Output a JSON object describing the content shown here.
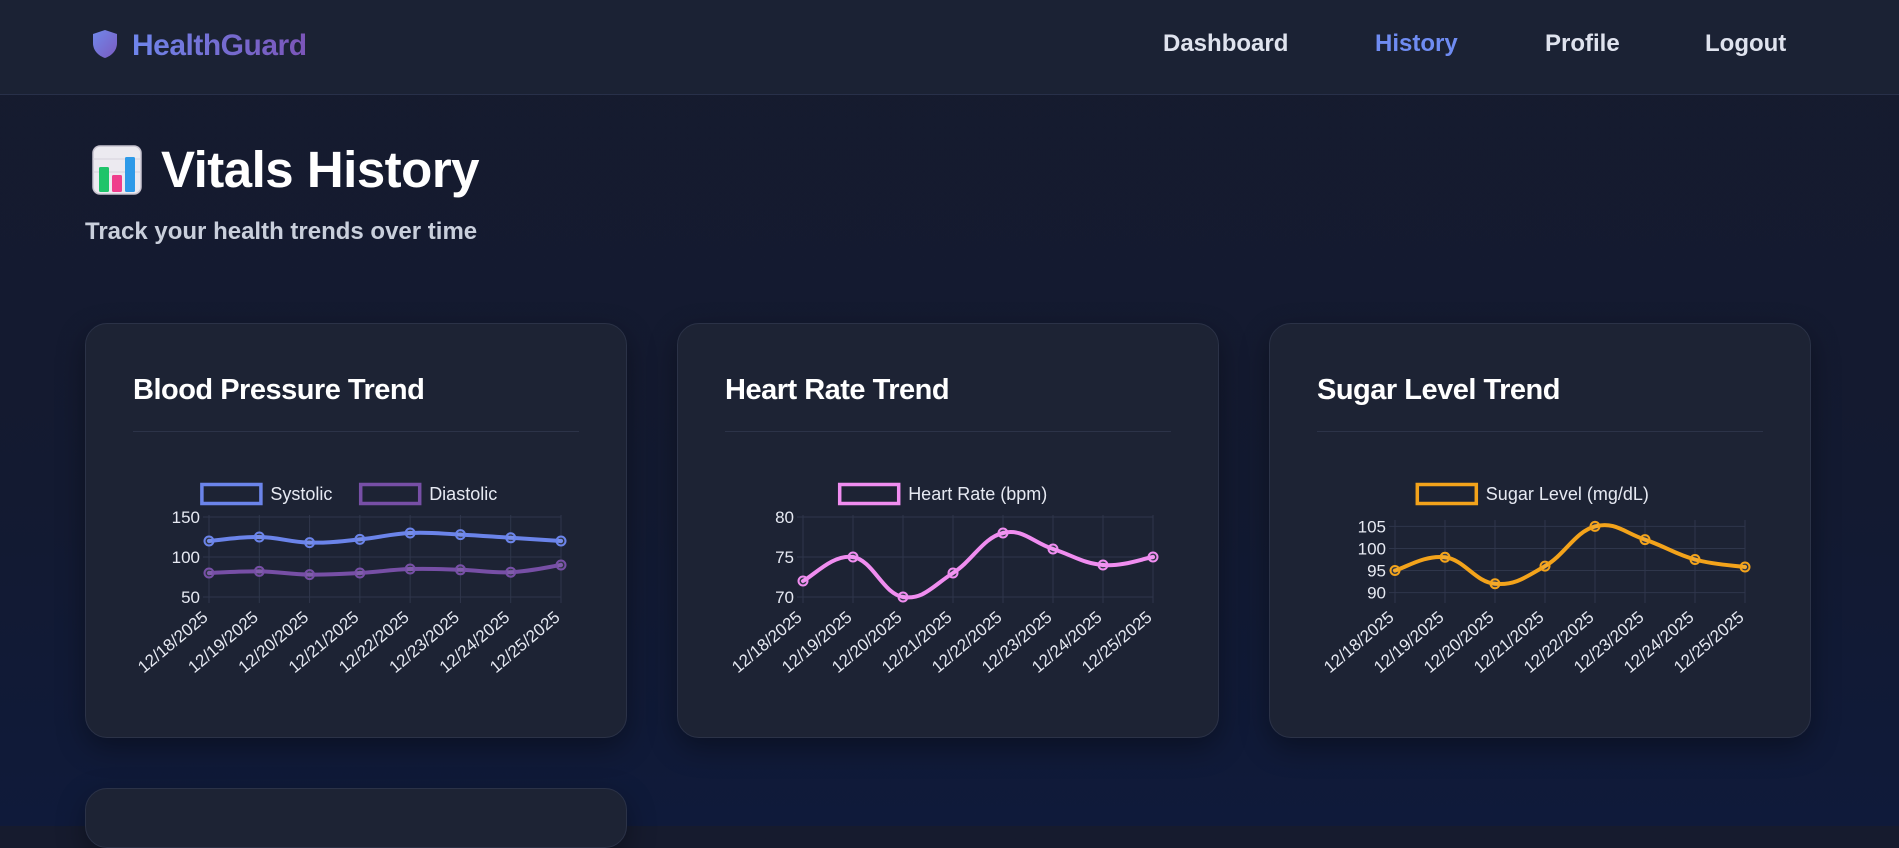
{
  "app": {
    "name": "HealthGuard",
    "brand_icon": "shield-icon"
  },
  "nav": {
    "items": [
      {
        "label": "Dashboard",
        "active": false
      },
      {
        "label": "History",
        "active": true
      },
      {
        "label": "Profile",
        "active": false
      },
      {
        "label": "Logout",
        "active": false
      }
    ]
  },
  "header": {
    "title_icon": "bar-chart-icon",
    "title": "Vitals History",
    "subtitle": "Track your health trends over time"
  },
  "colors": {
    "accent": "#6f8cf2",
    "systolic": "#6b84ea",
    "diastolic": "#774fa6",
    "heart_rate": "#f08df0",
    "sugar": "#f3a31b"
  },
  "cards": [
    {
      "title": "Blood Pressure Trend"
    },
    {
      "title": "Heart Rate Trend"
    },
    {
      "title": "Sugar Level Trend"
    }
  ],
  "chart_data": [
    {
      "type": "line",
      "title": "Blood Pressure Trend",
      "categories": [
        "12/18/2025",
        "12/19/2025",
        "12/20/2025",
        "12/21/2025",
        "12/22/2025",
        "12/23/2025",
        "12/24/2025",
        "12/25/2025"
      ],
      "series": [
        {
          "name": "Systolic",
          "color": "#6b84ea",
          "values": [
            120,
            125,
            118,
            122,
            130,
            128,
            124,
            120
          ]
        },
        {
          "name": "Diastolic",
          "color": "#774fa6",
          "values": [
            80,
            82,
            78,
            80,
            85,
            84,
            81,
            90
          ]
        }
      ],
      "yticks": [
        "50",
        "100",
        "150"
      ],
      "ylim": [
        50,
        150
      ],
      "grid": true,
      "legend": "top"
    },
    {
      "type": "line",
      "title": "Heart Rate Trend",
      "categories": [
        "12/18/2025",
        "12/19/2025",
        "12/20/2025",
        "12/21/2025",
        "12/22/2025",
        "12/23/2025",
        "12/24/2025",
        "12/25/2025"
      ],
      "series": [
        {
          "name": "Heart Rate (bpm)",
          "color": "#f08df0",
          "values": [
            72,
            75,
            70,
            73,
            78,
            76,
            74,
            75
          ]
        }
      ],
      "yticks": [
        "70",
        "75",
        "80"
      ],
      "ylim": [
        70,
        80
      ],
      "grid": true,
      "legend": "top"
    },
    {
      "type": "line",
      "title": "Sugar Level Trend",
      "categories": [
        "12/18/2025",
        "12/19/2025",
        "12/20/2025",
        "12/21/2025",
        "12/22/2025",
        "12/23/2025",
        "12/24/2025",
        "12/25/2025"
      ],
      "series": [
        {
          "name": "Sugar Level (mg/dL)",
          "color": "#f3a31b",
          "values": [
            95,
            98,
            92,
            96,
            105,
            102,
            97.5,
            95.8
          ]
        }
      ],
      "yticks": [
        "90",
        "95",
        "100",
        "105"
      ],
      "ylim": [
        89,
        106
      ],
      "grid": true,
      "legend": "top"
    }
  ]
}
